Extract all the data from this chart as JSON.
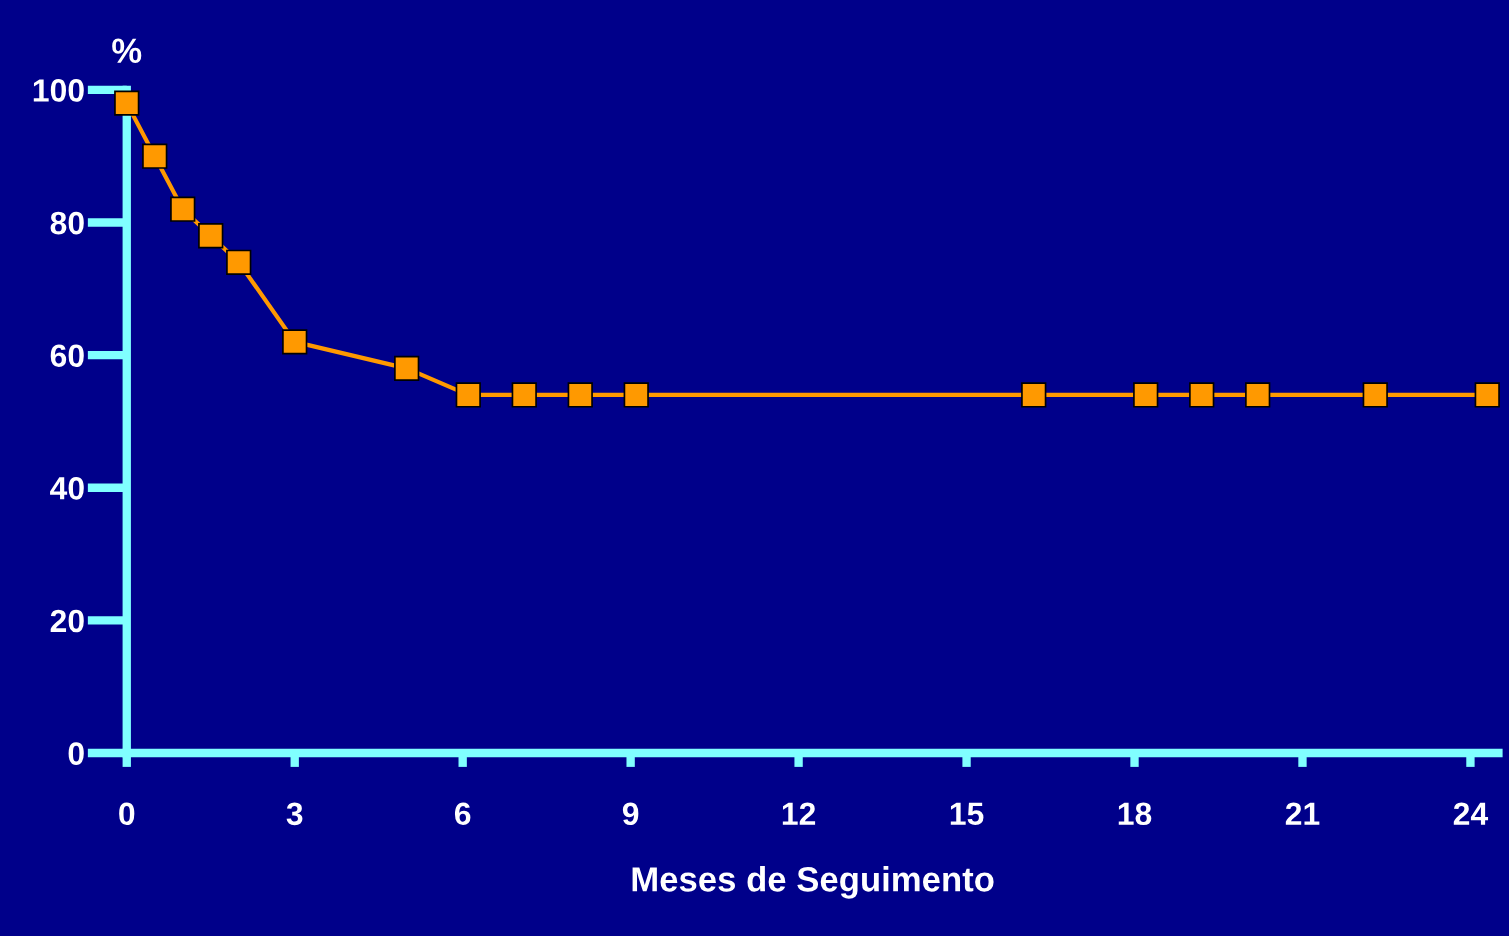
{
  "chart_data": {
    "type": "line",
    "xlabel": "Meses de Seguimento",
    "ylabel": "%",
    "x": [
      0,
      0.5,
      1,
      1.5,
      2,
      3,
      5,
      6.1,
      7.1,
      8.1,
      9.1,
      16.2,
      18.2,
      19.2,
      20.2,
      22.3,
      24.3
    ],
    "series": [
      {
        "color": "#ff9900",
        "values": [
          98,
          90,
          82,
          78,
          74,
          62,
          58,
          54,
          54,
          54,
          54,
          54,
          54,
          54,
          54,
          54,
          54
        ]
      }
    ],
    "xlim": [
      0,
      24.5
    ],
    "xticks": [
      0,
      3,
      6,
      9,
      12,
      15,
      18,
      21,
      24
    ],
    "ylim": [
      0,
      100
    ],
    "yticks": [
      0,
      20,
      40,
      60,
      80,
      100
    ],
    "marker": "square",
    "line_style": "solid",
    "grid": false,
    "legend": false
  }
}
